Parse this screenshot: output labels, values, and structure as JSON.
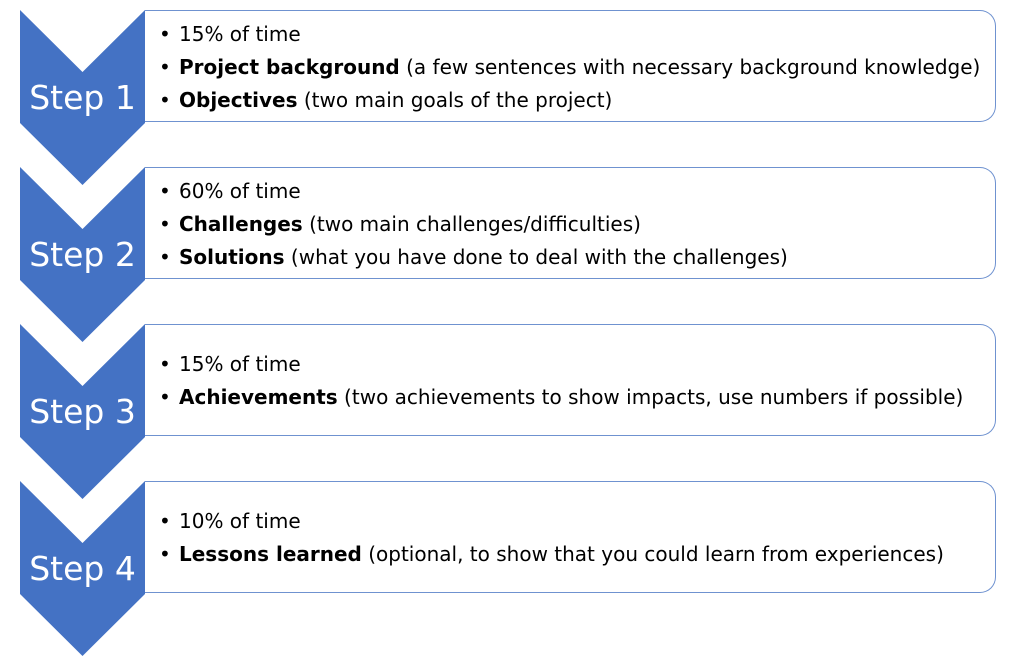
{
  "colors": {
    "chevron_fill": "#4472c4",
    "box_border": "#6f92d0",
    "label_text": "#ffffff"
  },
  "bullet_glyph": "•",
  "steps": [
    {
      "label": "Step 1",
      "bullets": [
        {
          "bold": "",
          "text": "15% of time"
        },
        {
          "bold": "Project background",
          "text": " (a few sentences with necessary background knowledge)"
        },
        {
          "bold": "Objectives",
          "text": " (two main goals of the project)"
        }
      ]
    },
    {
      "label": "Step 2",
      "bullets": [
        {
          "bold": "",
          "text": "60% of time"
        },
        {
          "bold": "Challenges",
          "text": " (two main challenges/difficulties)"
        },
        {
          "bold": "Solutions",
          "text": " (what you have done to deal with the challenges)"
        }
      ]
    },
    {
      "label": "Step 3",
      "bullets": [
        {
          "bold": "",
          "text": "15% of time"
        },
        {
          "bold": "Achievements",
          "text": " (two achievements to show impacts, use numbers if possible)"
        }
      ]
    },
    {
      "label": "Step 4",
      "bullets": [
        {
          "bold": "",
          "text": "10% of time"
        },
        {
          "bold": "Lessons learned",
          "text": " (optional, to show that you could learn from experiences)"
        }
      ]
    }
  ]
}
